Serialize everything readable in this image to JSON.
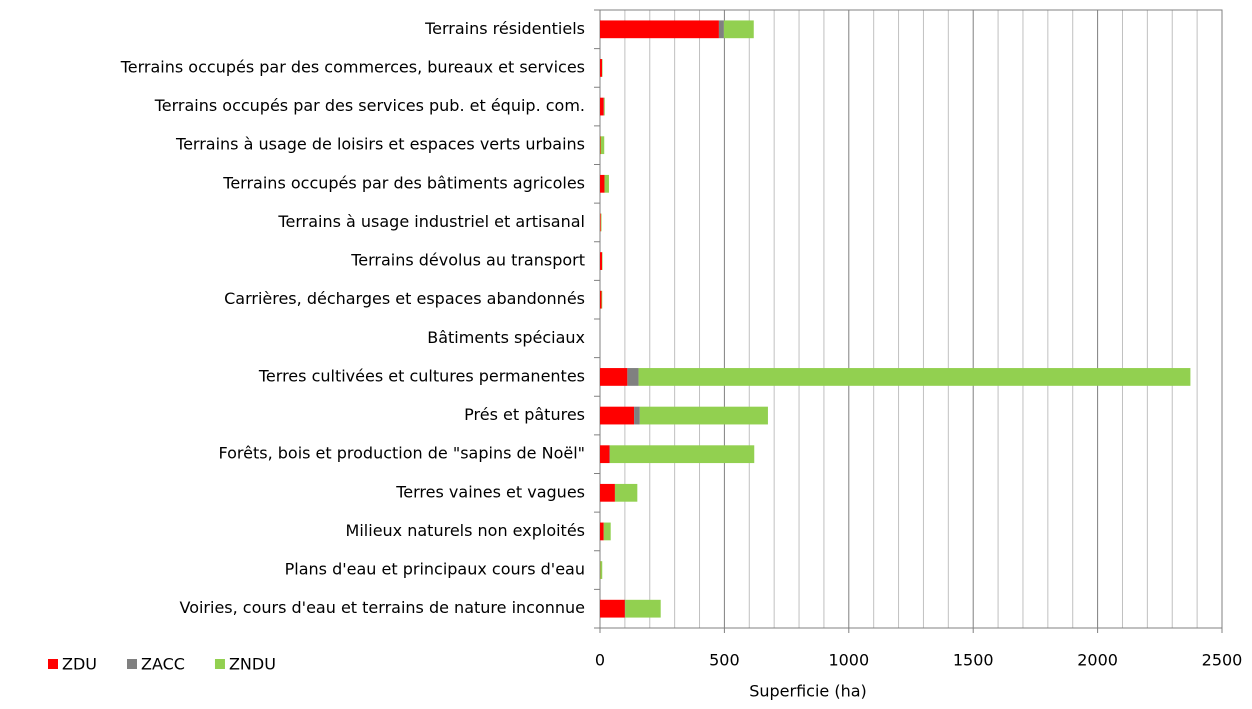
{
  "chart_data": {
    "type": "stacked_barh",
    "xlabel": "Superficie (ha)",
    "categories": [
      "Terrains résidentiels",
      "Terrains occupés par des commerces, bureaux et services",
      "Terrains occupés par des services pub. et équip. com.",
      "Terrains à usage de loisirs et espaces verts urbains",
      "Terrains occupés par des bâtiments agricoles",
      "Terrains à usage industriel et artisanal",
      "Terrains dévolus au transport",
      "Carrières, décharges et espaces abandonnés",
      "Bâtiments spéciaux",
      "Terres cultivées et cultures permanentes",
      "Prés et pâtures",
      "Forêts, bois et production de \"sapins de Noël\"",
      "Terres vaines et vagues",
      "Milieux naturels non exploités",
      "Plans d'eau et principaux cours d'eau",
      "Voiries, cours d'eau et terrains de nature inconnue"
    ],
    "series": [
      {
        "name": "ZDU",
        "color": "#ff0000",
        "values": [
          478,
          8,
          15,
          2,
          18,
          3,
          8,
          6,
          0,
          110,
          137,
          38,
          60,
          15,
          1,
          100
        ]
      },
      {
        "name": "ZACC",
        "color": "#808080",
        "values": [
          20,
          0,
          1,
          0,
          0,
          0,
          0,
          0,
          0,
          45,
          23,
          2,
          0,
          0,
          0,
          1
        ]
      },
      {
        "name": "ZNDU",
        "color": "#92d050",
        "values": [
          120,
          2,
          3,
          15,
          18,
          3,
          2,
          3,
          0,
          2218,
          515,
          580,
          90,
          28,
          8,
          143
        ]
      }
    ],
    "xlim": [
      0,
      2500
    ],
    "xticks": [
      0,
      500,
      1000,
      1500,
      2000,
      2500
    ],
    "xminorticks": [
      100,
      200,
      300,
      400,
      600,
      700,
      800,
      900,
      1100,
      1200,
      1300,
      1400,
      1600,
      1700,
      1800,
      1900,
      2100,
      2200,
      2300,
      2400
    ],
    "grid": true,
    "legend": "bottom-left"
  }
}
